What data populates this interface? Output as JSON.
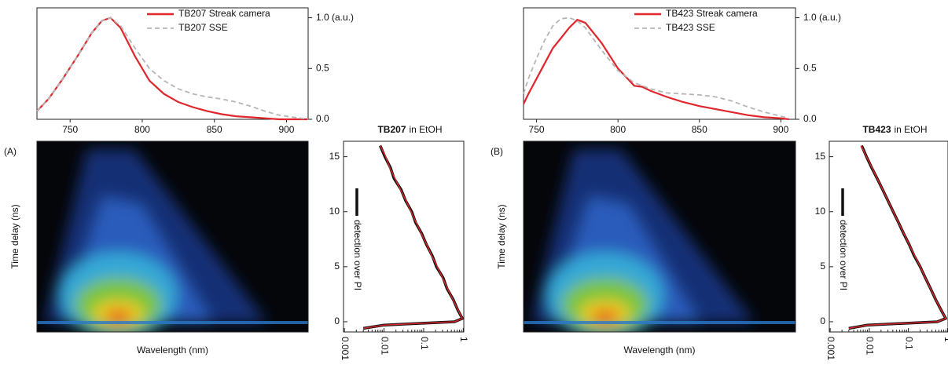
{
  "chart_data": [
    {
      "type": "line",
      "xlim": [
        727,
        915
      ],
      "xticks": [
        750,
        800,
        850,
        900
      ],
      "y2lim": [
        0,
        1.02
      ],
      "y2ticks": [
        {
          "value": 0,
          "label": "0.0"
        },
        0.5,
        {
          "value": 1,
          "label": "1.0 (a.u.)"
        }
      ],
      "x": [
        727,
        735,
        745,
        755,
        765,
        772,
        778,
        785,
        795,
        805,
        815,
        825,
        835,
        845,
        855,
        865,
        875,
        885,
        895,
        905,
        910,
        915
      ],
      "series": [
        {
          "name": "TB207 Streak camera",
          "color": "#e0262b",
          "dash": false,
          "axis": "y2",
          "values": [
            0.08,
            0.2,
            0.4,
            0.62,
            0.85,
            0.97,
            1.0,
            0.9,
            0.62,
            0.38,
            0.25,
            0.17,
            0.12,
            0.08,
            0.05,
            0.03,
            0.02,
            0.01,
            0.0,
            0.0,
            0.0,
            0.0
          ]
        },
        {
          "name": "TB207 SSE",
          "color": "#b5b5b5",
          "dash": true,
          "axis": "y2",
          "values": [
            0.08,
            0.2,
            0.4,
            0.62,
            0.85,
            0.97,
            1.0,
            0.92,
            0.7,
            0.5,
            0.38,
            0.3,
            0.25,
            0.22,
            0.2,
            0.17,
            0.13,
            0.08,
            0.04,
            0.02,
            0.01,
            0.0
          ]
        }
      ]
    },
    {
      "type": "heatmap",
      "label": "(A)",
      "xlabel": "Wavelength (nm)",
      "ylabel": "Time delay (ns)"
    },
    {
      "type": "decay",
      "title_bold": "TB207",
      "title_rest": "in EtOH",
      "annotation": "detection over PI",
      "x": [
        -0.6,
        -0.3,
        0,
        0.3,
        1,
        2,
        3,
        4,
        5,
        6,
        7,
        8,
        9,
        10,
        11,
        12,
        13,
        14,
        15,
        16
      ],
      "xlim": [
        -0.93,
        16.4
      ],
      "xticks": [
        0,
        5,
        10,
        15
      ],
      "ylim": [
        0.00095,
        1.03
      ],
      "log_y": true,
      "yticks": [
        0.001,
        0.01,
        0.1,
        1
      ],
      "series": [
        {
          "color": "#111111",
          "width": 3.5,
          "values": [
            0.003,
            0.01,
            0.6,
            0.95,
            0.74,
            0.56,
            0.39,
            0.31,
            0.21,
            0.165,
            0.118,
            0.09,
            0.063,
            0.05,
            0.035,
            0.027,
            0.018,
            0.0145,
            0.0105,
            0.008
          ]
        },
        {
          "color": "#d8262b",
          "width": 1.5,
          "values": [
            0.003,
            0.01,
            0.6,
            0.95,
            0.75,
            0.55,
            0.4,
            0.3,
            0.22,
            0.16,
            0.12,
            0.088,
            0.065,
            0.048,
            0.036,
            0.026,
            0.019,
            0.014,
            0.011,
            0.008
          ]
        }
      ]
    },
    {
      "type": "line",
      "xlim": [
        742,
        909
      ],
      "xticks": [
        750,
        800,
        850,
        900
      ],
      "y2lim": [
        0,
        1.02
      ],
      "y2ticks": [
        {
          "value": 0,
          "label": "0.0"
        },
        0.5,
        {
          "value": 1,
          "label": "1.0 (a.u.)"
        }
      ],
      "x": [
        742,
        745,
        750,
        755,
        760,
        765,
        770,
        775,
        780,
        790,
        800,
        810,
        815,
        820,
        830,
        840,
        850,
        860,
        870,
        880,
        890,
        900,
        905
      ],
      "series": [
        {
          "name": "TB423 Streak camera",
          "color": "#e0262b",
          "dash": false,
          "axis": "y2",
          "values": [
            0.15,
            0.25,
            0.4,
            0.55,
            0.7,
            0.8,
            0.9,
            0.98,
            0.95,
            0.75,
            0.5,
            0.33,
            0.32,
            0.28,
            0.22,
            0.17,
            0.13,
            0.1,
            0.07,
            0.04,
            0.02,
            0.01,
            0.0
          ]
        },
        {
          "name": "TB423 SSE",
          "color": "#b5b5b5",
          "dash": true,
          "axis": "y2",
          "values": [
            0.25,
            0.4,
            0.6,
            0.78,
            0.92,
            0.99,
            1.0,
            0.97,
            0.9,
            0.68,
            0.48,
            0.36,
            0.33,
            0.3,
            0.26,
            0.25,
            0.24,
            0.22,
            0.18,
            0.12,
            0.07,
            0.03,
            0.01
          ]
        }
      ]
    },
    {
      "type": "heatmap",
      "label": "(B)",
      "xlabel": "Wavelength (nm)",
      "ylabel": "Time delay (ns)"
    },
    {
      "type": "decay",
      "title_bold": "TB423",
      "title_rest": "in EtOH",
      "annotation": "detection over PI",
      "x": [
        -0.6,
        -0.3,
        0,
        0.3,
        1,
        2,
        3,
        4,
        5,
        6,
        7,
        8,
        9,
        10,
        11,
        12,
        13,
        14,
        15,
        16
      ],
      "xlim": [
        -0.93,
        16.4
      ],
      "xticks": [
        0,
        5,
        10,
        15
      ],
      "ylim": [
        0.00095,
        1.03
      ],
      "log_y": true,
      "yticks": [
        0.001,
        0.01,
        0.1,
        1
      ],
      "series": [
        {
          "color": "#111111",
          "width": 3.5,
          "values": [
            0.003,
            0.009,
            0.55,
            0.9,
            0.7,
            0.5,
            0.37,
            0.27,
            0.2,
            0.14,
            0.105,
            0.076,
            0.056,
            0.041,
            0.03,
            0.022,
            0.016,
            0.0115,
            0.0085,
            0.0064
          ]
        },
        {
          "color": "#d8262b",
          "width": 1.5,
          "values": [
            0.003,
            0.009,
            0.55,
            0.9,
            0.7,
            0.5,
            0.37,
            0.27,
            0.2,
            0.145,
            0.105,
            0.077,
            0.056,
            0.041,
            0.03,
            0.022,
            0.016,
            0.0117,
            0.0085,
            0.0062
          ]
        }
      ]
    }
  ]
}
